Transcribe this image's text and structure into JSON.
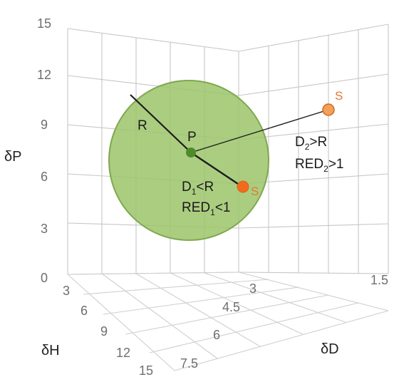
{
  "diagram": {
    "axes": {
      "dP": {
        "label": "δP",
        "ticks": [
          "0",
          "3",
          "6",
          "9",
          "12",
          "15"
        ]
      },
      "dH": {
        "label": "δH",
        "ticks": [
          "3",
          "6",
          "9",
          "12",
          "15"
        ]
      },
      "dD": {
        "label": "δD",
        "ticks": [
          "1.5",
          "3",
          "4.5",
          "6",
          "7.5"
        ]
      }
    },
    "sphere": {
      "center_label": "P",
      "radius_label": "R",
      "fill": "#9cc46a",
      "edge": "#7fa84f"
    },
    "solvents": {
      "inside": {
        "label": "S",
        "distance": "D",
        "distance_sub": "1",
        "distance_rel": "<R",
        "red": "RED",
        "red_sub": "1",
        "red_rel": "<1"
      },
      "outside": {
        "label": "S",
        "distance": "D",
        "distance_sub": "2",
        "distance_rel": ">R",
        "red": "RED",
        "red_sub": "2",
        "red_rel": ">1"
      }
    },
    "colors": {
      "point_orange": "#f08a3c",
      "point_orange_edge": "#d2691e",
      "center_green": "#4f8a2a",
      "line": "#1c1c1c"
    }
  }
}
